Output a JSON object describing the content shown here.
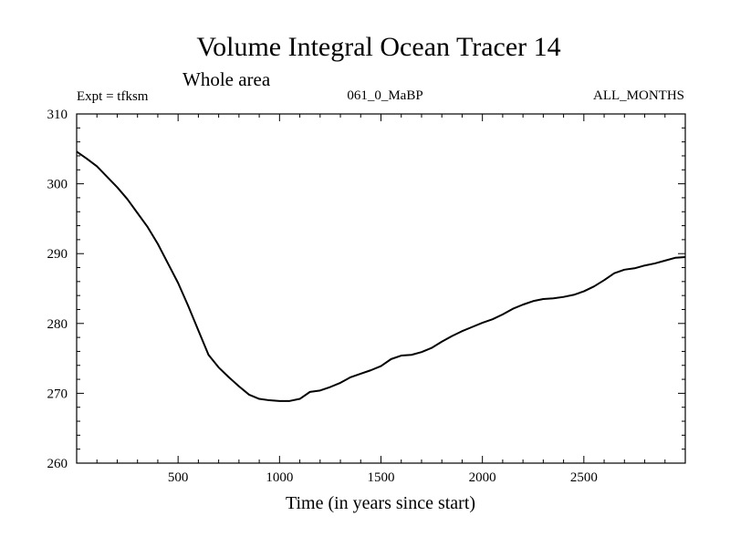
{
  "chart_data": {
    "type": "line",
    "title": "Volume Integral Ocean Tracer 14",
    "subtitle": "Whole area",
    "expt_label": "Expt = tfksm",
    "run_label": "061_0_MaBP",
    "months_label": "ALL_MONTHS",
    "xlabel": "Time (in years since start)",
    "ylabel": "",
    "xlim": [
      0,
      3000
    ],
    "ylim": [
      260,
      310
    ],
    "x_ticks": [
      500,
      1000,
      1500,
      2000,
      2500
    ],
    "y_ticks": [
      260,
      270,
      280,
      290,
      300,
      310
    ],
    "x_minor_step": 100,
    "y_minor_step": 2,
    "series": [
      {
        "name": "Ocean Tracer 14",
        "color": "#000000",
        "x": [
          0,
          50,
          100,
          150,
          200,
          250,
          300,
          350,
          400,
          450,
          500,
          550,
          600,
          650,
          700,
          750,
          800,
          850,
          900,
          950,
          1000,
          1050,
          1100,
          1150,
          1200,
          1250,
          1300,
          1350,
          1400,
          1450,
          1500,
          1550,
          1600,
          1650,
          1700,
          1750,
          1800,
          1850,
          1900,
          1950,
          2000,
          2050,
          2100,
          2150,
          2200,
          2250,
          2300,
          2350,
          2400,
          2450,
          2500,
          2550,
          2600,
          2650,
          2700,
          2750,
          2800,
          2850,
          2900,
          2950,
          3000
        ],
        "values": [
          304.6,
          303.6,
          302.5,
          301.0,
          299.5,
          297.8,
          295.8,
          293.8,
          291.4,
          288.6,
          285.8,
          282.5,
          279.0,
          275.5,
          273.7,
          272.3,
          271.0,
          269.8,
          269.2,
          269.0,
          268.9,
          268.9,
          269.2,
          270.2,
          270.4,
          270.9,
          271.5,
          272.3,
          272.8,
          273.3,
          273.9,
          274.9,
          275.4,
          275.5,
          275.9,
          276.5,
          277.4,
          278.2,
          278.9,
          279.5,
          280.1,
          280.6,
          281.3,
          282.1,
          282.7,
          283.2,
          283.5,
          283.6,
          283.8,
          284.1,
          284.6,
          285.3,
          286.2,
          287.2,
          287.7,
          287.9,
          288.3,
          288.6,
          289.0,
          289.4,
          289.5
        ]
      }
    ]
  }
}
